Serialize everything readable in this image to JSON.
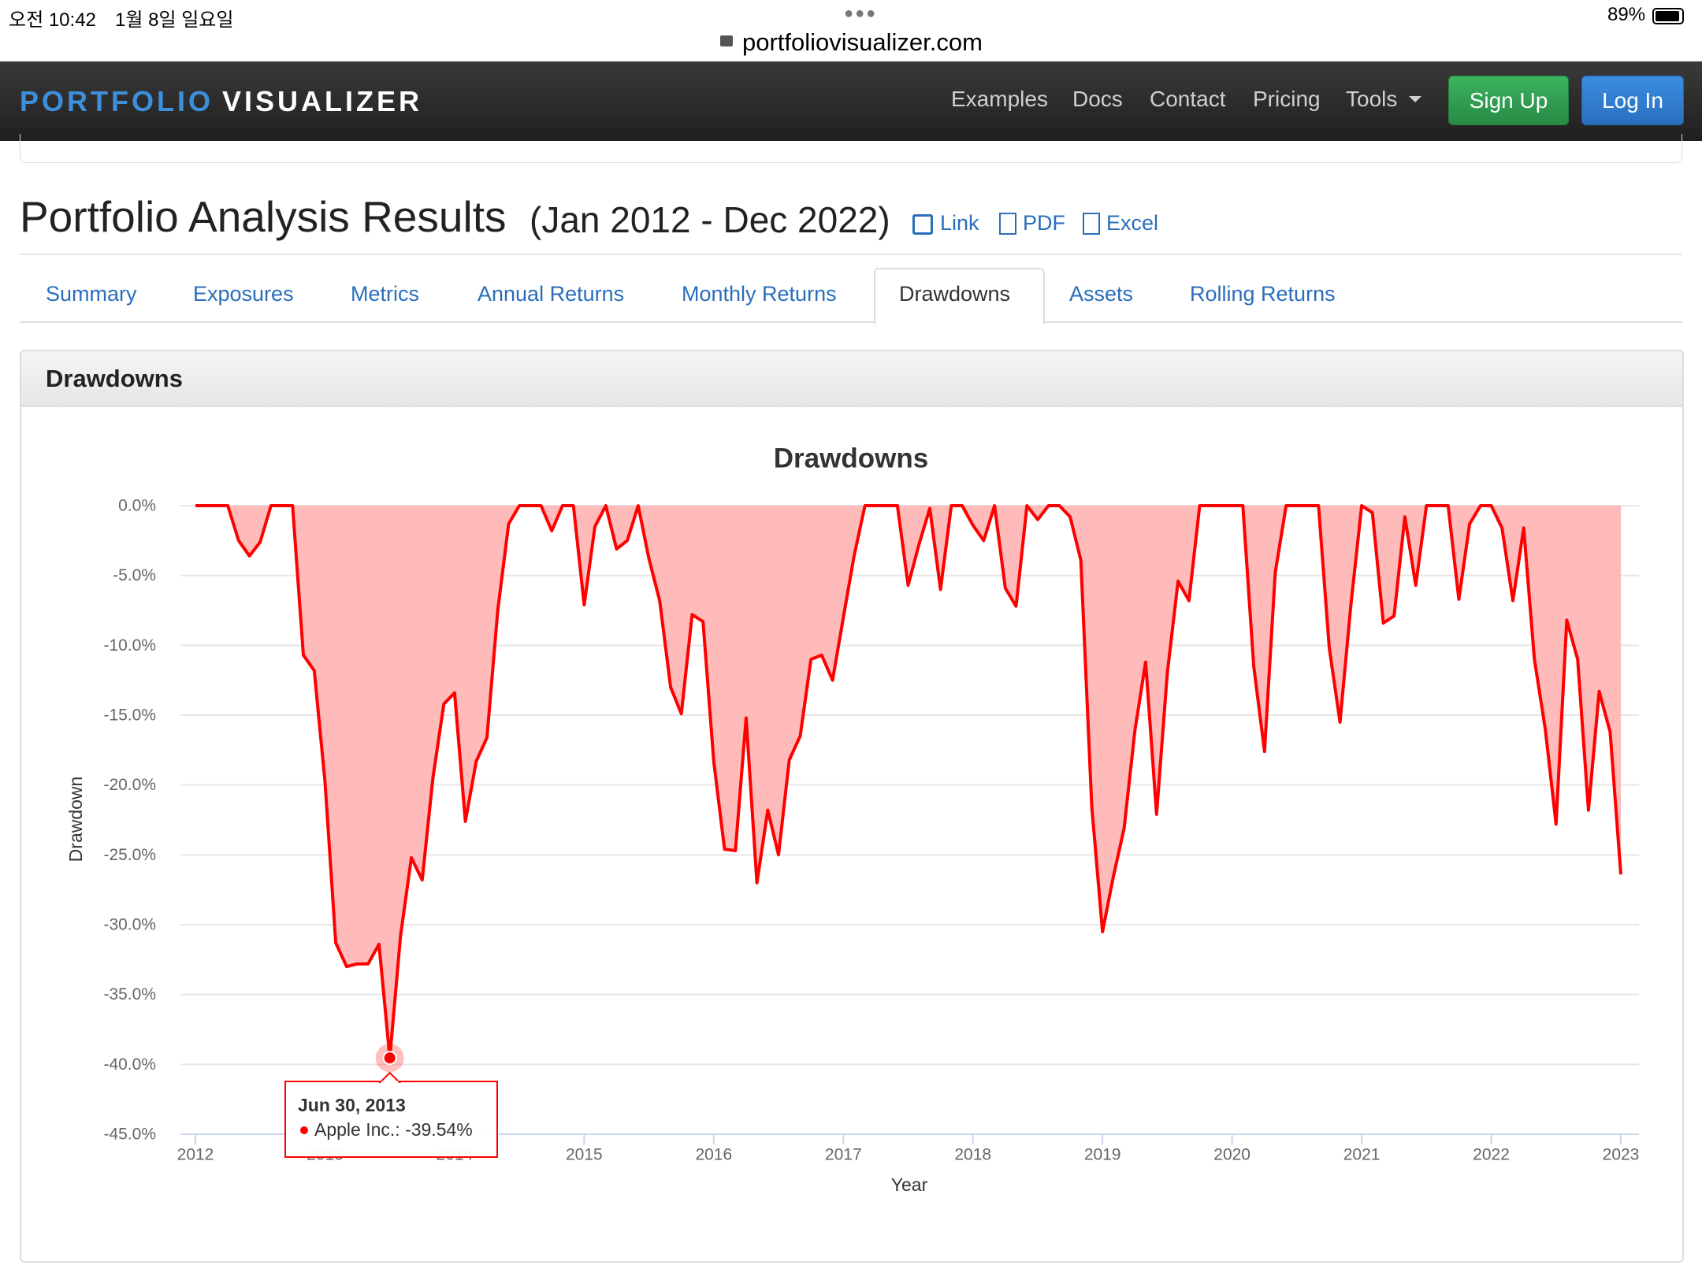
{
  "status_bar": {
    "time": "오전 10:42",
    "date": "1월 8일 일요일",
    "battery": "89%"
  },
  "browser": {
    "url": "portfoliovisualizer.com"
  },
  "navbar": {
    "brand": [
      "PORTFOLIO",
      "VISUALIZER"
    ],
    "links": [
      "Examples",
      "Docs",
      "Contact",
      "Pricing",
      "Tools"
    ],
    "buttons": [
      "Sign Up",
      "Log In"
    ]
  },
  "page": {
    "title": "Portfolio Analysis Results",
    "period": "(Jan 2012 - Dec 2022)",
    "actions": [
      "Link",
      "PDF",
      "Excel"
    ]
  },
  "tabs": [
    "Summary",
    "Exposures",
    "Metrics",
    "Annual Returns",
    "Monthly Returns",
    "Drawdowns",
    "Assets",
    "Rolling Returns"
  ],
  "panel": {
    "title": "Drawdowns"
  },
  "chart_data": {
    "type": "area",
    "title": "Drawdowns",
    "x_label": "Year",
    "y_label": "Drawdown",
    "x": [
      2012.0,
      2012.083,
      2012.167,
      2012.25,
      2012.333,
      2012.417,
      2012.5,
      2012.583,
      2012.667,
      2012.75,
      2012.833,
      2012.917,
      2013.0,
      2013.083,
      2013.167,
      2013.25,
      2013.333,
      2013.417,
      2013.5,
      2013.583,
      2013.667,
      2013.75,
      2013.833,
      2013.917,
      2014.0,
      2014.083,
      2014.167,
      2014.25,
      2014.333,
      2014.417,
      2014.5,
      2014.583,
      2014.667,
      2014.75,
      2014.833,
      2014.917,
      2015.0,
      2015.083,
      2015.167,
      2015.25,
      2015.333,
      2015.417,
      2015.5,
      2015.583,
      2015.667,
      2015.75,
      2015.833,
      2015.917,
      2016.0,
      2016.083,
      2016.167,
      2016.25,
      2016.333,
      2016.417,
      2016.5,
      2016.583,
      2016.667,
      2016.75,
      2016.833,
      2016.917,
      2017.0,
      2017.083,
      2017.167,
      2017.25,
      2017.333,
      2017.417,
      2017.5,
      2017.583,
      2017.667,
      2017.75,
      2017.833,
      2017.917,
      2018.0,
      2018.083,
      2018.167,
      2018.25,
      2018.333,
      2018.417,
      2018.5,
      2018.583,
      2018.667,
      2018.75,
      2018.833,
      2018.917,
      2019.0,
      2019.083,
      2019.167,
      2019.25,
      2019.333,
      2019.417,
      2019.5,
      2019.583,
      2019.667,
      2019.75,
      2019.833,
      2019.917,
      2020.0,
      2020.083,
      2020.167,
      2020.25,
      2020.333,
      2020.417,
      2020.5,
      2020.583,
      2020.667,
      2020.75,
      2020.833,
      2020.917,
      2021.0,
      2021.083,
      2021.167,
      2021.25,
      2021.333,
      2021.417,
      2021.5,
      2021.583,
      2021.667,
      2021.75,
      2021.833,
      2021.917,
      2022.0,
      2022.083,
      2022.167,
      2022.25,
      2022.333,
      2022.417,
      2022.5,
      2022.583,
      2022.667,
      2022.75,
      2022.833,
      2022.917,
      2023.0
    ],
    "series": [
      {
        "color": "#ff0000",
        "fill": "#ffb3b3",
        "values": [
          0,
          0,
          0,
          0,
          -2.5,
          -3.6,
          -2.6,
          0,
          0,
          0,
          -10.7,
          -11.8,
          -19.8,
          -31.3,
          -33.0,
          -32.8,
          -32.8,
          -31.4,
          -39.54,
          -30.8,
          -25.2,
          -26.8,
          -19.5,
          -14.2,
          -13.4,
          -22.6,
          -18.3,
          -16.6,
          -7.5,
          -1.3,
          0,
          0,
          0,
          -1.8,
          0,
          0,
          -7.1,
          -1.5,
          0,
          -3.1,
          -2.5,
          0,
          -3.8,
          -6.8,
          -13.0,
          -14.9,
          -7.8,
          -8.3,
          -18.3,
          -24.6,
          -24.7,
          -15.2,
          -27.0,
          -21.8,
          -25.0,
          -18.2,
          -16.5,
          -11.0,
          -10.7,
          -12.5,
          -8.0,
          -3.6,
          0,
          0,
          0,
          0,
          -5.7,
          -2.8,
          -0.2,
          -6.0,
          0,
          0,
          -1.4,
          -2.5,
          0,
          -5.9,
          -7.2,
          0,
          -1.0,
          0,
          0,
          -0.8,
          -3.9,
          -21.5,
          -30.5,
          -26.6,
          -23.1,
          -16.1,
          -11.2,
          -22.1,
          -12.0,
          -5.4,
          -6.8,
          0,
          0,
          0,
          0,
          0,
          -11.5,
          -17.6,
          -4.8,
          0,
          0,
          0,
          0,
          -10.2,
          -15.5,
          -7.1,
          0,
          -0.5,
          -8.4,
          -7.9,
          -0.8,
          -5.7,
          0,
          0,
          0,
          -6.7,
          -1.3,
          0,
          0,
          -1.6,
          -6.8,
          -1.6,
          -11.0,
          -16.0,
          -22.8,
          -8.2,
          -11.0,
          -21.8,
          -13.3,
          -16.2,
          -26.4
        ]
      }
    ],
    "xlim": [
      2012,
      2023
    ],
    "xticks": [
      2012,
      2013,
      2014,
      2015,
      2016,
      2017,
      2018,
      2019,
      2020,
      2021,
      2022,
      2023
    ],
    "ylim": [
      -45,
      0
    ],
    "yticks": [
      {
        "value": 0,
        "label": "0.0%"
      },
      {
        "value": -5,
        "label": "-5.0%"
      },
      {
        "value": -10,
        "label": "-10.0%"
      },
      {
        "value": -15,
        "label": "-15.0%"
      },
      {
        "value": -20,
        "label": "-20.0%"
      },
      {
        "value": -25,
        "label": "-25.0%"
      },
      {
        "value": -30,
        "label": "-30.0%"
      },
      {
        "value": -35,
        "label": "-35.0%"
      },
      {
        "value": -40,
        "label": "-40.0%"
      },
      {
        "value": -45,
        "label": "-45.0%"
      }
    ],
    "grid": true,
    "tooltip": {
      "title": "Jun 30, 2013",
      "label": "Apple Inc.: -39.54%"
    }
  }
}
